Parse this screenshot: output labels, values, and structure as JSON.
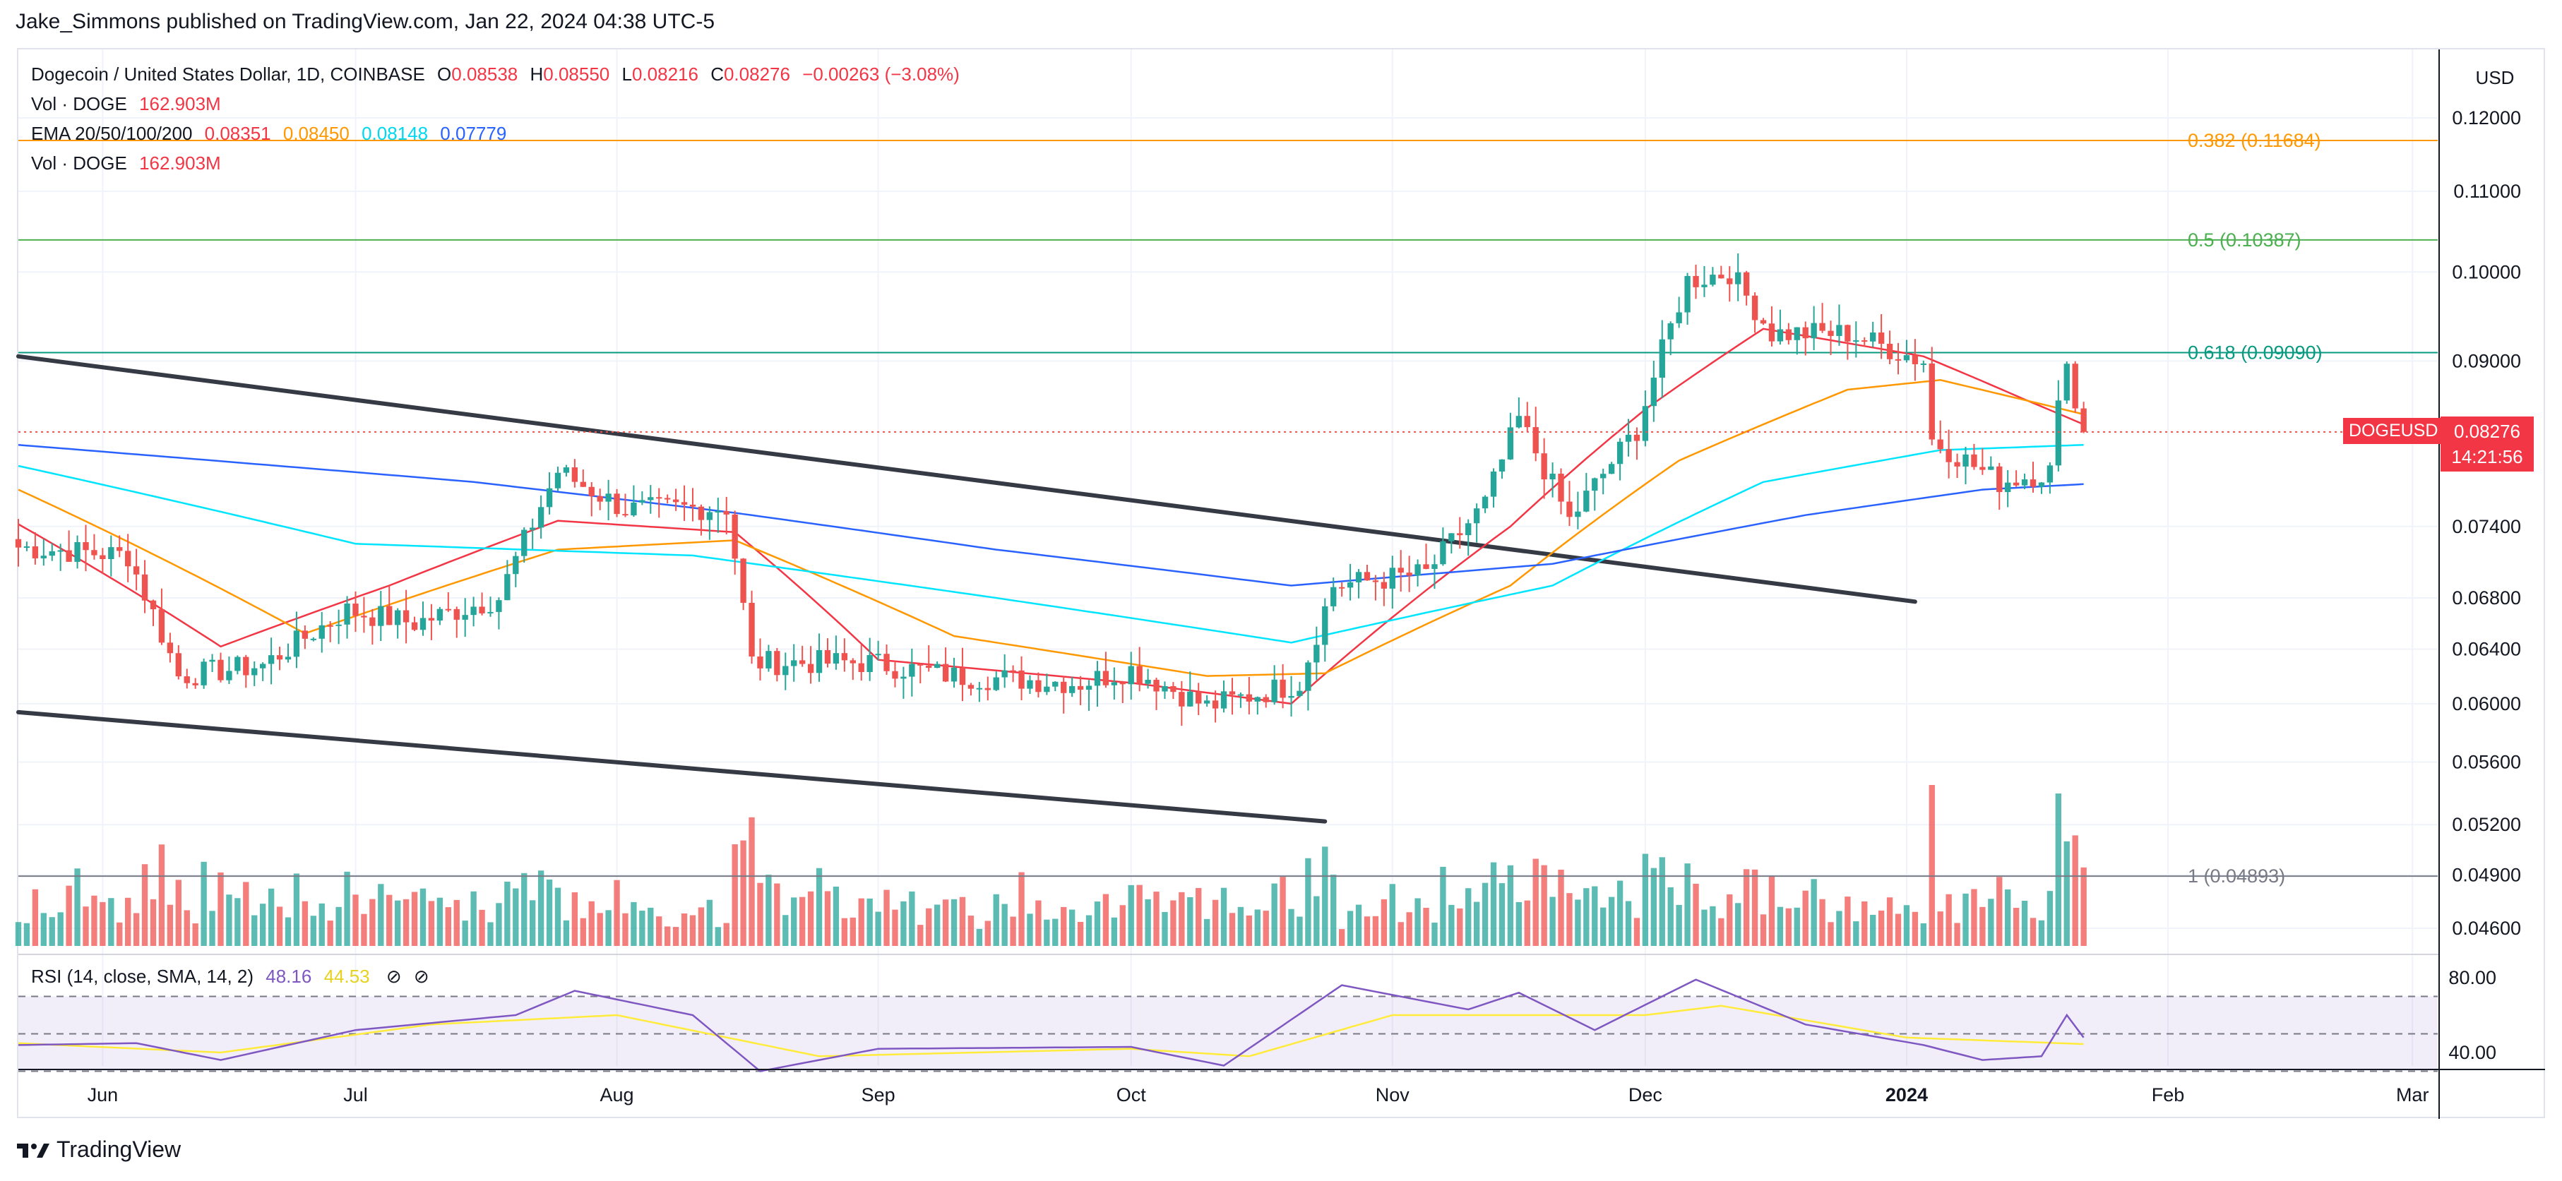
{
  "header": {
    "publisher_line": "Jake_Simmons published on TradingView.com, Jan 22, 2024 04:38 UTC-5"
  },
  "legend": {
    "symbol": "Dogecoin / United States Dollar, 1D, COINBASE",
    "o_label": "O",
    "o_value": "0.08538",
    "h_label": "H",
    "h_value": "0.08550",
    "l_label": "L",
    "l_value": "0.08216",
    "c_label": "C",
    "c_value": "0.08276",
    "change": "−0.00263 (−3.08%)",
    "vol_label": "Vol · DOGE",
    "vol_value": "162.903M",
    "ema_label": "EMA 20/50/100/200",
    "ema20": "0.08351",
    "ema50": "0.08450",
    "ema100": "0.08148",
    "ema200": "0.07779",
    "vol2_label": "Vol · DOGE",
    "vol2_value": "162.903M"
  },
  "axis": {
    "currency": "USD",
    "symbol_tag": "DOGEUSD",
    "last_price": "0.08276",
    "countdown": "14:21:56"
  },
  "rsi": {
    "label": "RSI (14, close, SMA, 14, 2)",
    "value": "48.16",
    "sma_value": "44.53"
  },
  "footer": {
    "brand": "TradingView"
  },
  "colors": {
    "up": "#26a69a",
    "down": "#ef5350",
    "ema20": "#f23645",
    "ema50": "#ff9800",
    "ema100": "#00e5ff",
    "ema200": "#2962ff",
    "fib382": "#ff9800",
    "fib05": "#4caf50",
    "fib618": "#089981",
    "fib1": "#787b86",
    "channel": "#363a45",
    "rsi": "#7e57c2",
    "rsi_sma": "#ffeb3b"
  },
  "chart_data": {
    "type": "candlestick",
    "title": "Dogecoin / United States Dollar, 1D, COINBASE",
    "price_scale": "log",
    "price_axis_ticks": [
      0.12,
      0.11,
      0.1,
      0.09,
      0.074,
      0.068,
      0.064,
      0.06,
      0.056,
      0.052,
      0.049,
      0.046
    ],
    "price_axis_tick_labels": [
      "0.12000",
      "0.11000",
      "0.10000",
      "0.09000",
      "0.07400",
      "0.06800",
      "0.06400",
      "0.06000",
      "0.05600",
      "0.05200",
      "0.04900",
      "0.04600"
    ],
    "time_axis_labels": [
      "Jun",
      "Jul",
      "Aug",
      "Sep",
      "Oct",
      "Nov",
      "Dec",
      "2024",
      "Feb",
      "Mar"
    ],
    "time_axis_dates": [
      "2023-06-01",
      "2023-07-01",
      "2023-08-01",
      "2023-09-01",
      "2023-10-01",
      "2023-11-01",
      "2023-12-01",
      "2024-01-01",
      "2024-02-01",
      "2024-03-01"
    ],
    "x_range": [
      "2023-05-22",
      "2024-03-04"
    ],
    "fib_levels": [
      {
        "label": "0.382 (0.11684)",
        "level": 0.382,
        "price": 0.11684
      },
      {
        "label": "0.5 (0.10387)",
        "level": 0.5,
        "price": 0.10387
      },
      {
        "label": "0.618 (0.09090)",
        "level": 0.618,
        "price": 0.0909
      },
      {
        "label": "1 (0.04893)",
        "level": 1,
        "price": 0.04893
      }
    ],
    "last_price": 0.08276,
    "channel_lines": [
      {
        "name": "upper",
        "from": {
          "date": "2023-05-22",
          "price": 0.0905
        },
        "to": {
          "date": "2024-01-02",
          "price": 0.0677
        }
      },
      {
        "name": "lower",
        "from": {
          "date": "2023-05-22",
          "price": 0.0594
        },
        "to": {
          "date": "2023-10-24",
          "price": 0.0522
        }
      }
    ],
    "ema_anchor_points": {
      "ema20": [
        [
          "2023-05-22",
          0.0742
        ],
        [
          "2023-06-15",
          0.0642
        ],
        [
          "2023-07-05",
          0.069
        ],
        [
          "2023-07-25",
          0.0745
        ],
        [
          "2023-08-15",
          0.0735
        ],
        [
          "2023-09-01",
          0.0632
        ],
        [
          "2023-10-01",
          0.0615
        ],
        [
          "2023-10-20",
          0.06
        ],
        [
          "2023-11-15",
          0.074
        ],
        [
          "2023-12-01",
          0.085
        ],
        [
          "2023-12-15",
          0.0935
        ],
        [
          "2024-01-03",
          0.0905
        ],
        [
          "2024-01-15",
          0.086
        ],
        [
          "2024-01-22",
          0.0835
        ]
      ],
      "ema50": [
        [
          "2023-05-22",
          0.0773
        ],
        [
          "2023-06-25",
          0.0652
        ],
        [
          "2023-07-25",
          0.072
        ],
        [
          "2023-08-15",
          0.0728
        ],
        [
          "2023-09-10",
          0.065
        ],
        [
          "2023-10-10",
          0.062
        ],
        [
          "2023-10-24",
          0.0622
        ],
        [
          "2023-11-15",
          0.069
        ],
        [
          "2023-12-05",
          0.08
        ],
        [
          "2023-12-25",
          0.087
        ],
        [
          "2024-01-05",
          0.088
        ],
        [
          "2024-01-22",
          0.0845
        ]
      ],
      "ema100": [
        [
          "2023-05-22",
          0.0795
        ],
        [
          "2023-07-01",
          0.0725
        ],
        [
          "2023-08-10",
          0.0715
        ],
        [
          "2023-09-15",
          0.068
        ],
        [
          "2023-10-20",
          0.0645
        ],
        [
          "2023-11-20",
          0.069
        ],
        [
          "2023-12-15",
          0.078
        ],
        [
          "2024-01-05",
          0.081
        ],
        [
          "2024-01-22",
          0.0815
        ]
      ],
      "ema200": [
        [
          "2023-05-22",
          0.0815
        ],
        [
          "2023-07-15",
          0.078
        ],
        [
          "2023-08-15",
          0.0752
        ],
        [
          "2023-09-15",
          0.072
        ],
        [
          "2023-10-20",
          0.069
        ],
        [
          "2023-11-20",
          0.0708
        ],
        [
          "2023-12-20",
          0.075
        ],
        [
          "2024-01-10",
          0.0773
        ],
        [
          "2024-01-22",
          0.0778
        ]
      ]
    },
    "candle_anchors": [
      [
        "2023-05-22",
        0.0722
      ],
      [
        "2023-06-04",
        0.0715
      ],
      [
        "2023-06-10",
        0.062
      ],
      [
        "2023-06-20",
        0.0628
      ],
      [
        "2023-06-30",
        0.067
      ],
      [
        "2023-07-08",
        0.066
      ],
      [
        "2023-07-18",
        0.068
      ],
      [
        "2023-07-25",
        0.079
      ],
      [
        "2023-08-02",
        0.0755
      ],
      [
        "2023-08-14",
        0.0757
      ],
      [
        "2023-08-17",
        0.063
      ],
      [
        "2023-08-31",
        0.063
      ],
      [
        "2023-09-10",
        0.062
      ],
      [
        "2023-09-25",
        0.0615
      ],
      [
        "2023-10-01",
        0.0625
      ],
      [
        "2023-10-10",
        0.0598
      ],
      [
        "2023-10-21",
        0.0615
      ],
      [
        "2023-10-25",
        0.069
      ],
      [
        "2023-11-05",
        0.07
      ],
      [
        "2023-11-12",
        0.076
      ],
      [
        "2023-11-16",
        0.084
      ],
      [
        "2023-11-22",
        0.0745
      ],
      [
        "2023-11-30",
        0.083
      ],
      [
        "2023-12-06",
        0.099
      ],
      [
        "2023-12-11",
        0.1
      ],
      [
        "2023-12-16",
        0.093
      ],
      [
        "2023-12-25",
        0.093
      ],
      [
        "2024-01-03",
        0.09
      ],
      [
        "2024-01-04",
        0.082
      ],
      [
        "2024-01-12",
        0.078
      ],
      [
        "2024-01-18",
        0.079
      ],
      [
        "2024-01-20",
        0.091
      ],
      [
        "2024-01-21",
        0.085
      ],
      [
        "2024-01-22",
        0.0828
      ]
    ],
    "volume_note": "Vol · DOGE histogram shown along the bottom of the price pane",
    "rsi_axis_ticks": [
      80,
      40
    ],
    "rsi_anchor_points": [
      [
        "2023-05-22",
        44
      ],
      [
        "2023-06-05",
        45
      ],
      [
        "2023-06-15",
        36
      ],
      [
        "2023-07-01",
        52
      ],
      [
        "2023-07-20",
        60
      ],
      [
        "2023-07-27",
        73
      ],
      [
        "2023-08-10",
        60
      ],
      [
        "2023-08-18",
        30
      ],
      [
        "2023-09-01",
        42
      ],
      [
        "2023-10-01",
        43
      ],
      [
        "2023-10-12",
        33
      ],
      [
        "2023-10-26",
        76
      ],
      [
        "2023-11-10",
        63
      ],
      [
        "2023-11-16",
        72
      ],
      [
        "2023-11-25",
        52
      ],
      [
        "2023-12-07",
        79
      ],
      [
        "2023-12-20",
        55
      ],
      [
        "2024-01-03",
        44
      ],
      [
        "2024-01-10",
        36
      ],
      [
        "2024-01-17",
        38
      ],
      [
        "2024-01-20",
        60
      ],
      [
        "2024-01-22",
        48
      ]
    ],
    "rsi_sma_anchor_points": [
      [
        "2023-05-22",
        45
      ],
      [
        "2023-06-15",
        40
      ],
      [
        "2023-07-10",
        55
      ],
      [
        "2023-08-01",
        60
      ],
      [
        "2023-08-25",
        38
      ],
      [
        "2023-10-01",
        42
      ],
      [
        "2023-10-15",
        38
      ],
      [
        "2023-11-01",
        60
      ],
      [
        "2023-12-01",
        60
      ],
      [
        "2023-12-10",
        65
      ],
      [
        "2024-01-01",
        48
      ],
      [
        "2024-01-22",
        44.53
      ]
    ]
  }
}
